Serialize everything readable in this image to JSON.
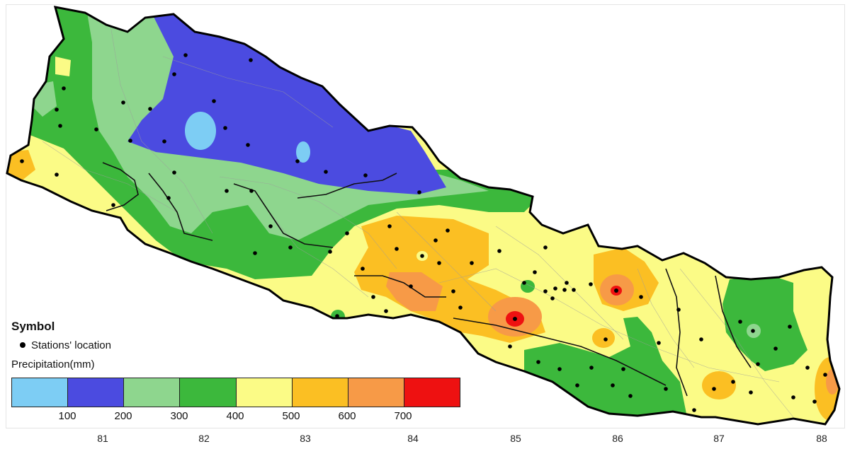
{
  "legend": {
    "title": "Symbol",
    "stations_label": "Stations' location",
    "precip_label": "Precipitation(mm)",
    "classes": [
      {
        "color": "#7dcdf4"
      },
      {
        "color": "#4b4be0"
      },
      {
        "color": "#8ed68e"
      },
      {
        "color": "#3cb83c"
      },
      {
        "color": "#fbfb86"
      },
      {
        "color": "#fbbf23"
      },
      {
        "color": "#f79a47"
      },
      {
        "color": "#ee1111"
      }
    ],
    "class_breaks": [
      "100",
      "200",
      "300",
      "400",
      "500",
      "600",
      "700"
    ]
  },
  "x_axis": {
    "ticks": [
      "81",
      "82",
      "83",
      "84",
      "85",
      "86",
      "87",
      "88"
    ]
  }
}
